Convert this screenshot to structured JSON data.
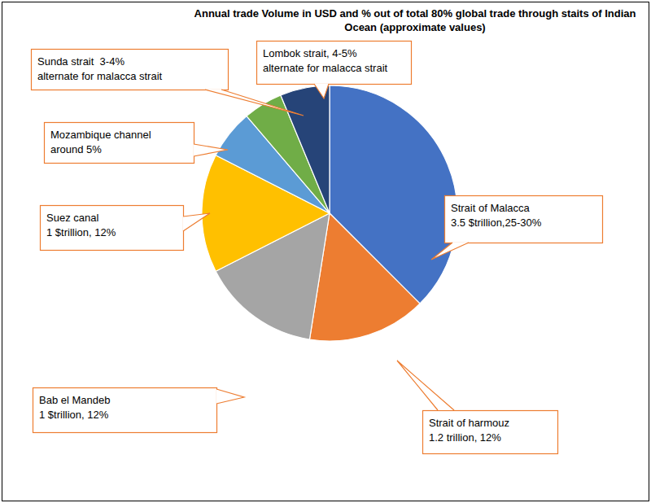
{
  "chart_data": {
    "type": "pie",
    "title": "Annual trade Volume in USD and % out of total 80% global trade through staits of Indian Ocean (approximate values)",
    "categories": [
      "Strait of Malacca",
      "Strait of harmouz",
      "Bab el Mandeb",
      "Suez canal",
      "Mozambique channel",
      "Sunda strait  3-4%",
      "Lombok strait, 4-5%"
    ],
    "annotations": [
      "3.5 $trillion,25-30%",
      "1.2 trillion, 12%",
      "1 $trillion, 12%",
      "1 $trillion, 12%",
      "around 5%",
      "alternate for malacca strait",
      "alternate for malacca strait"
    ],
    "values": [
      30,
      12,
      12,
      12,
      5,
      4,
      5
    ],
    "colors": [
      "#4472c4",
      "#ed7d31",
      "#a5a5a5",
      "#ffc000",
      "#5b9bd5",
      "#70ad47",
      "#264478"
    ]
  }
}
